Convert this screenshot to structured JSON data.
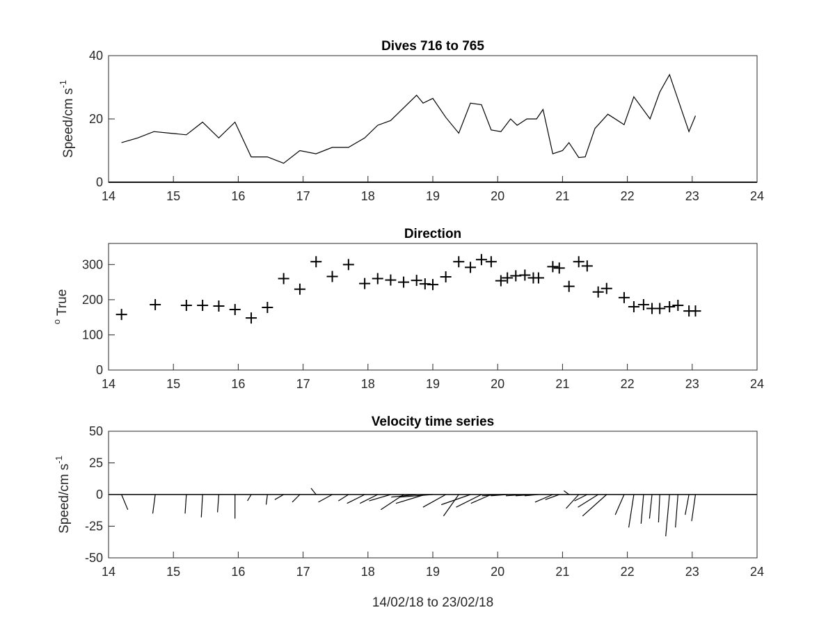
{
  "figure": {
    "xlabel": "14/02/18 to 23/02/18",
    "xlim": [
      14,
      24
    ],
    "xticks": [
      14,
      15,
      16,
      17,
      18,
      19,
      20,
      21,
      22,
      23,
      24
    ]
  },
  "chart_data": [
    {
      "type": "line",
      "title": "Dives 716 to 765",
      "ylabel": "Speed/cm s",
      "ylabel_superscript": "-1",
      "ylim": [
        0,
        40
      ],
      "yticks": [
        0,
        20,
        40
      ],
      "x": [
        14.2,
        14.45,
        14.7,
        14.95,
        15.2,
        15.45,
        15.7,
        15.95,
        16.2,
        16.45,
        16.7,
        16.95,
        17.2,
        17.45,
        17.7,
        17.95,
        18.15,
        18.35,
        18.55,
        18.75,
        18.85,
        19.0,
        19.2,
        19.4,
        19.58,
        19.75,
        19.9,
        20.05,
        20.2,
        20.3,
        20.45,
        20.6,
        20.7,
        20.85,
        21.0,
        21.1,
        21.25,
        21.35,
        21.5,
        21.7,
        21.95,
        22.1,
        22.35,
        22.5,
        22.65,
        22.95,
        23.05
      ],
      "values": [
        12.5,
        14,
        16,
        15.5,
        15,
        19,
        14,
        19,
        8,
        8,
        6,
        10,
        9,
        11,
        11,
        14,
        18,
        19.5,
        23.5,
        27.5,
        25,
        26.5,
        20.5,
        15.5,
        25,
        24.5,
        16.5,
        16,
        20,
        18,
        20,
        20,
        23,
        9,
        10,
        12.5,
        7.8,
        8,
        17,
        21.5,
        18.2,
        27,
        20,
        28.5,
        34,
        16,
        21
      ]
    },
    {
      "type": "scatter",
      "title": "Direction",
      "ylabel": "True",
      "ylabel_superscript": "o",
      "ylim": [
        0,
        360
      ],
      "yticks": [
        0,
        100,
        200,
        300
      ],
      "marker": "+",
      "x": [
        14.2,
        14.72,
        15.2,
        15.45,
        15.7,
        15.95,
        16.2,
        16.45,
        16.7,
        16.95,
        17.2,
        17.45,
        17.7,
        17.95,
        18.15,
        18.35,
        18.55,
        18.75,
        18.88,
        19.0,
        19.2,
        19.4,
        19.58,
        19.75,
        19.9,
        20.05,
        20.15,
        20.28,
        20.42,
        20.55,
        20.63,
        20.85,
        20.95,
        21.1,
        21.25,
        21.38,
        21.55,
        21.68,
        21.95,
        22.1,
        22.25,
        22.38,
        22.5,
        22.65,
        22.78,
        22.95,
        23.05
      ],
      "values": [
        158,
        186,
        184,
        184,
        182,
        172,
        148,
        178,
        260,
        230,
        308,
        266,
        300,
        246,
        260,
        256,
        250,
        255,
        245,
        243,
        265,
        308,
        292,
        314,
        308,
        254,
        262,
        268,
        270,
        262,
        262,
        294,
        290,
        238,
        308,
        296,
        222,
        232,
        206,
        180,
        186,
        175,
        175,
        180,
        184,
        168,
        168
      ]
    },
    {
      "type": "line",
      "title": "Velocity time series",
      "subtype": "stick_vectors",
      "xlabel": "14/02/18 to 23/02/18",
      "ylabel": "Speed/cm s",
      "ylabel_superscript": "-1",
      "ylim": [
        -50,
        50
      ],
      "yticks": [
        -50,
        -25,
        0,
        25,
        50
      ],
      "x": [
        14.2,
        14.72,
        15.2,
        15.45,
        15.7,
        15.95,
        16.2,
        16.45,
        16.7,
        16.95,
        17.2,
        17.45,
        17.7,
        17.95,
        18.15,
        18.35,
        18.55,
        18.75,
        18.88,
        19.0,
        19.2,
        19.4,
        19.58,
        19.75,
        19.9,
        20.05,
        20.15,
        20.28,
        20.42,
        20.55,
        20.63,
        20.85,
        20.95,
        21.1,
        21.25,
        21.38,
        21.55,
        21.68,
        21.95,
        22.1,
        22.25,
        22.38,
        22.5,
        22.65,
        22.78,
        22.95,
        23.05
      ],
      "u": [
        5,
        -2,
        -1,
        -1,
        -1,
        0,
        -3,
        -1,
        -7,
        -6,
        -4,
        -11,
        -8,
        -14,
        -14,
        -17,
        -18,
        -20,
        -23,
        -26,
        -18,
        -12,
        -23,
        -20,
        -16,
        -15,
        -13,
        -11,
        -15,
        -14,
        -11,
        -14,
        -11,
        -4,
        -10,
        -10,
        -16,
        -19,
        -7,
        -4,
        -2,
        -2,
        -1,
        -3,
        -2,
        -3,
        -3
      ],
      "v": [
        -12,
        -15,
        -15,
        -18,
        -14,
        -19,
        -5,
        -8,
        -4,
        -6,
        5,
        -6,
        -5,
        -7,
        -7,
        -5,
        -12,
        -2,
        -7,
        -2,
        -10,
        -17,
        -8,
        -10,
        -7,
        -1,
        -1,
        0,
        -1,
        -1,
        -1,
        -6,
        -4,
        3,
        -11,
        -5,
        -10,
        -17,
        -16,
        -26,
        -23,
        -19,
        -22,
        -33,
        -26,
        -16,
        -21
      ]
    }
  ]
}
